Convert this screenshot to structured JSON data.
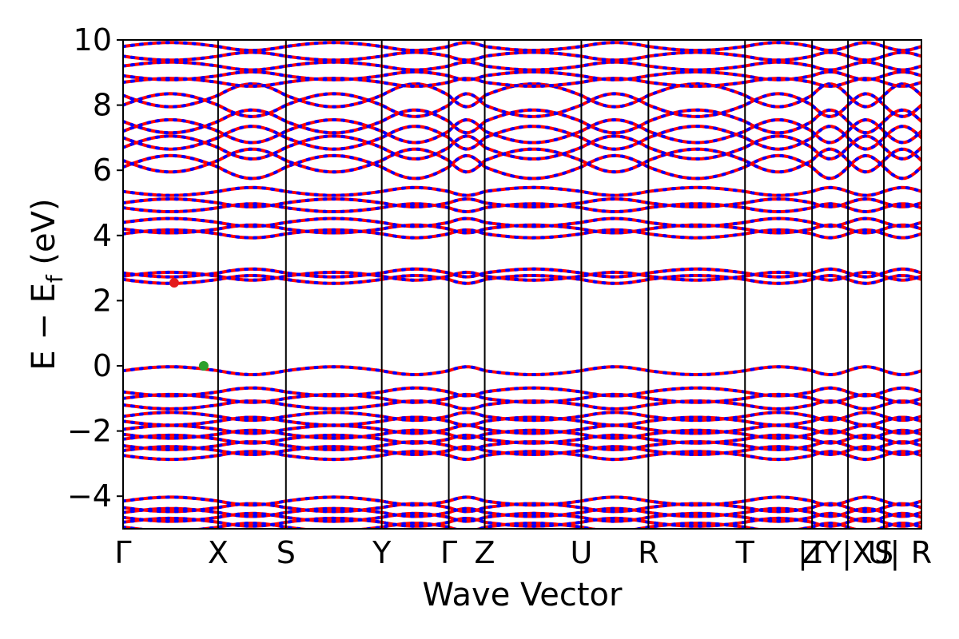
{
  "chart_data": {
    "type": "line",
    "title": "",
    "xlabel": "Wave Vector",
    "ylabel_parts": {
      "main": "E − E",
      "sub": "f",
      "unit": " (eV)"
    },
    "ylim": [
      -5,
      10
    ],
    "yticks": [
      -4,
      -2,
      0,
      2,
      4,
      6,
      8,
      10
    ],
    "ytick_labels": [
      "−4",
      "−2",
      "0",
      "2",
      "4",
      "6",
      "8",
      "10"
    ],
    "xlim": [
      0,
      1
    ],
    "kpoints": [
      {
        "label": "Γ",
        "x": 0.0
      },
      {
        "label": "X",
        "x": 0.119
      },
      {
        "label": "S",
        "x": 0.204
      },
      {
        "label": "Y",
        "x": 0.324
      },
      {
        "label": "Γ",
        "x": 0.408
      },
      {
        "label": "Z",
        "x": 0.453
      },
      {
        "label": "U",
        "x": 0.574
      },
      {
        "label": "R",
        "x": 0.658
      },
      {
        "label": "T",
        "x": 0.779
      },
      {
        "label": "Z",
        "x": 0.863
      },
      {
        "label": "|T",
        "x": 0.863
      },
      {
        "label": "Y|X",
        "x": 0.908
      },
      {
        "label": "U|",
        "x": 0.953
      },
      {
        "label": "S",
        "x": 0.953
      },
      {
        "label": "R",
        "x": 1.0
      }
    ],
    "kpoint_lines_x": [
      0.119,
      0.204,
      0.324,
      0.408,
      0.453,
      0.574,
      0.658,
      0.779,
      0.863,
      0.908,
      0.953
    ],
    "series": [
      {
        "color": "#ff0000",
        "role": "bands-spin-up"
      },
      {
        "color": "#0000ff",
        "role": "bands-spin-down"
      }
    ],
    "band_energies": [
      -4.95,
      -4.8,
      -4.65,
      -4.5,
      -4.35,
      -4.15,
      -2.75,
      -2.6,
      -2.45,
      -2.25,
      -2.1,
      -1.95,
      -1.7,
      -1.55,
      -1.2,
      -1.0,
      -0.8,
      -0.15,
      2.65,
      2.75,
      2.85,
      4.05,
      4.2,
      4.4,
      4.85,
      5.0,
      5.35,
      6.1,
      6.3,
      6.7,
      7.0,
      7.2,
      7.5,
      8.0,
      8.3,
      8.7,
      8.9,
      9.2,
      9.5,
      9.8
    ],
    "markers": [
      {
        "name": "cbm",
        "x": 0.064,
        "y": 2.55,
        "color": "#e31a1c"
      },
      {
        "name": "vbm",
        "x": 0.101,
        "y": 0.0,
        "color": "#2ca02c"
      }
    ],
    "grid": false
  }
}
